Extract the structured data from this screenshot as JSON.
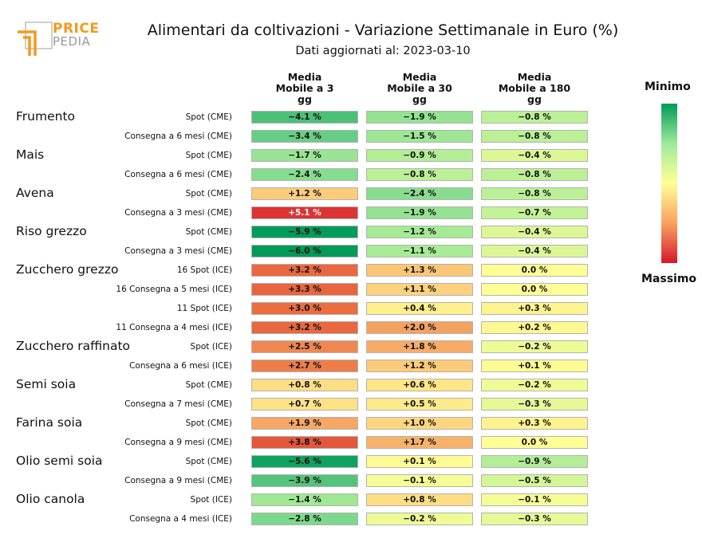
{
  "header": {
    "logo_top": "PRICE",
    "logo_bottom": "PEDIA",
    "title": "Alimentari da coltivazioni - Variazione Settimanale in Euro (%)",
    "subtitle": "Dati aggiornati al: 2023-03-10"
  },
  "colorbar": {
    "min_label": "Minimo",
    "max_label": "Massimo",
    "colors": [
      "#009a58",
      "#9eea9a",
      "#ffff96",
      "#f9a160",
      "#d7192d"
    ]
  },
  "chart_data": {
    "type": "table",
    "columns": [
      "Media\nMobile a 3\ngg",
      "Media\nMobile a 30\ngg",
      "Media\nMobile a 180\ngg"
    ],
    "groups": [
      {
        "name": "Frumento",
        "rows": [
          {
            "label": "Spot (CME)",
            "values": [
              "−4.1 %",
              "−1.9 %",
              "−0.8 %"
            ]
          },
          {
            "label": "Consegna a 6 mesi (CME)",
            "values": [
              "−3.4 %",
              "−1.5 %",
              "−0.8 %"
            ]
          }
        ]
      },
      {
        "name": "Mais",
        "rows": [
          {
            "label": "Spot (CME)",
            "values": [
              "−1.7 %",
              "−0.9 %",
              "−0.4 %"
            ]
          },
          {
            "label": "Consegna a 6 mesi (CME)",
            "values": [
              "−2.4 %",
              "−0.8 %",
              "−0.8 %"
            ]
          }
        ]
      },
      {
        "name": "Avena",
        "rows": [
          {
            "label": "Spot (CME)",
            "values": [
              "+1.2 %",
              "−2.4 %",
              "−0.8 %"
            ]
          },
          {
            "label": "Consegna a 3 mesi (CME)",
            "values": [
              "+5.1 %",
              "−1.9 %",
              "−0.7 %"
            ]
          }
        ]
      },
      {
        "name": "Riso grezzo",
        "rows": [
          {
            "label": "Spot (CME)",
            "values": [
              "−5.9 %",
              "−1.2 %",
              "−0.4 %"
            ]
          },
          {
            "label": "Consegna a 3 mesi (CME)",
            "values": [
              "−6.0 %",
              "−1.1 %",
              "−0.4 %"
            ]
          }
        ]
      },
      {
        "name": "Zucchero grezzo",
        "rows": [
          {
            "label": "16 Spot (ICE)",
            "values": [
              "+3.2 %",
              "+1.3 %",
              "0.0 %"
            ]
          },
          {
            "label": "16 Consegna a 5 mesi (ICE)",
            "values": [
              "+3.3 %",
              "+1.1 %",
              "0.0 %"
            ]
          },
          {
            "label": "11 Spot (ICE)",
            "values": [
              "+3.0 %",
              "+0.4 %",
              "+0.3 %"
            ]
          },
          {
            "label": "11 Consegna a 4 mesi (ICE)",
            "values": [
              "+3.2 %",
              "+2.0 %",
              "+0.2 %"
            ]
          }
        ]
      },
      {
        "name": "Zucchero raffinato",
        "rows": [
          {
            "label": "Spot (ICE)",
            "values": [
              "+2.5 %",
              "+1.8 %",
              "−0.2 %"
            ]
          },
          {
            "label": "Consegna a 6 mesi (ICE)",
            "values": [
              "+2.7 %",
              "+1.2 %",
              "+0.1 %"
            ]
          }
        ]
      },
      {
        "name": "Semi soia",
        "rows": [
          {
            "label": "Spot (CME)",
            "values": [
              "+0.8 %",
              "+0.6 %",
              "−0.2 %"
            ]
          },
          {
            "label": "Consegna a 7 mesi (CME)",
            "values": [
              "+0.7 %",
              "+0.5 %",
              "−0.3 %"
            ]
          }
        ]
      },
      {
        "name": "Farina soia",
        "rows": [
          {
            "label": "Spot (CME)",
            "values": [
              "+1.9 %",
              "+1.0 %",
              "+0.3 %"
            ]
          },
          {
            "label": "Consegna a 9 mesi (CME)",
            "values": [
              "+3.8 %",
              "+1.7 %",
              "0.0 %"
            ]
          }
        ]
      },
      {
        "name": "Olio semi soia",
        "rows": [
          {
            "label": "Spot (CME)",
            "values": [
              "−5.6 %",
              "+0.1 %",
              "−0.9 %"
            ]
          },
          {
            "label": "Consegna a 9 mesi (CME)",
            "values": [
              "−3.9 %",
              "−0.1 %",
              "−0.5 %"
            ]
          }
        ]
      },
      {
        "name": "Olio canola",
        "rows": [
          {
            "label": "Spot (ICE)",
            "values": [
              "−1.4 %",
              "+0.8 %",
              "−0.1 %"
            ]
          },
          {
            "label": "Consegna a 4 mesi (ICE)",
            "values": [
              "−2.8 %",
              "−0.2 %",
              "−0.3 %"
            ]
          }
        ]
      }
    ]
  }
}
